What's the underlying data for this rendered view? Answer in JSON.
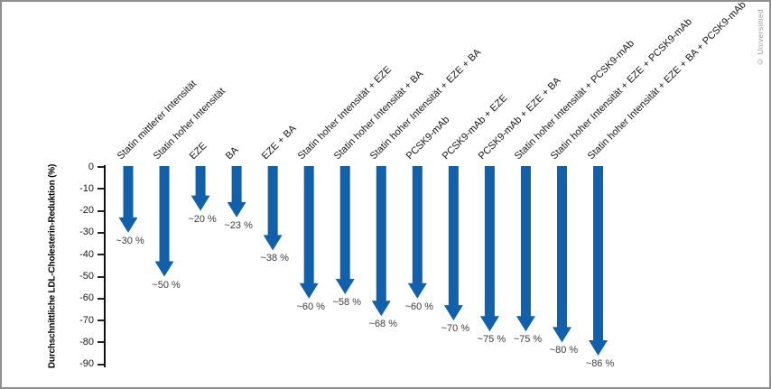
{
  "chart_data": {
    "type": "bar",
    "variant": "downward-arrow-chart",
    "ylabel": "Durchschnittliche LDL-Cholesterin-Reduktion (%)",
    "ylim": [
      -90,
      0
    ],
    "ytick_labels": [
      "0",
      "-10",
      "-20",
      "-30",
      "-40",
      "-50",
      "-60",
      "-70",
      "-80",
      "-90"
    ],
    "grid": false,
    "legend": false,
    "categories": [
      "Statin mittlerer Intensität",
      "Statin hoher Intensität",
      "EZE",
      "BA",
      "EZE + BA",
      "Statin hoher Intensität + EZE",
      "Statin hoher Intensität + BA",
      "Statin hoher Intensität + EZE + BA",
      "PCSK9-mAb",
      "PCSK9-mAb + EZE",
      "PCSK9-mAb + EZE + BA",
      "Statin hoher Intensität + PCSK9-mAb",
      "Statin hoher Intensität + EZE + PCSK9-mAb",
      "Statin hoher Intensität + EZE + BA + PCSK9-mAb"
    ],
    "values": [
      -30,
      -50,
      -20,
      -23,
      -38,
      -60,
      -58,
      -68,
      -60,
      -70,
      -75,
      -75,
      -80,
      -86
    ],
    "value_labels": [
      "~30 %",
      "~50 %",
      "~20 %",
      "~23 %",
      "~38 %",
      "~60 %",
      "~58 %",
      "~68 %",
      "~60 %",
      "~70 %",
      "~75 %",
      "~75 %",
      "~80 %",
      "~86 %"
    ],
    "arrow_color": "#1160ac",
    "axis_color": "#111111",
    "value_text_color": "#3d3d3d",
    "label_text_color": "#141414",
    "credit": "© Universimed"
  }
}
